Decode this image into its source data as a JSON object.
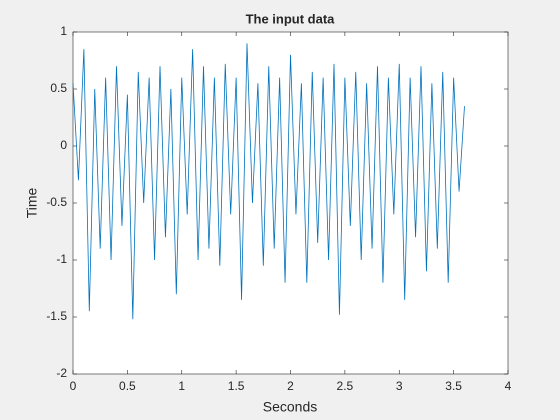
{
  "chart_data": {
    "type": "line",
    "title": "The input data",
    "xlabel": "Seconds",
    "ylabel": "Time",
    "x": [
      0,
      0.05,
      0.1,
      0.15,
      0.2,
      0.25,
      0.3,
      0.35,
      0.4,
      0.45,
      0.5,
      0.55,
      0.6,
      0.65,
      0.7,
      0.75,
      0.8,
      0.85,
      0.9,
      0.95,
      1,
      1.05,
      1.1,
      1.15,
      1.2,
      1.25,
      1.3,
      1.35,
      1.4,
      1.45,
      1.5,
      1.55,
      1.6,
      1.65,
      1.7,
      1.75,
      1.8,
      1.85,
      1.9,
      1.95,
      2,
      2.05,
      2.1,
      2.15,
      2.2,
      2.25,
      2.3,
      2.35,
      2.4,
      2.45,
      2.5,
      2.55,
      2.6,
      2.65,
      2.7,
      2.75,
      2.8,
      2.85,
      2.9,
      2.95,
      3,
      3.05,
      3.1,
      3.15,
      3.2,
      3.25,
      3.3,
      3.35,
      3.4,
      3.45,
      3.5,
      3.55,
      3.6
    ],
    "series": [
      {
        "color": "#0072bd",
        "values": [
          0.55,
          -0.3,
          0.85,
          -1.45,
          0.5,
          -0.9,
          0.6,
          -1.0,
          0.7,
          -0.7,
          0.45,
          -1.52,
          0.65,
          -0.5,
          0.6,
          -1.0,
          0.7,
          -0.8,
          0.5,
          -1.3,
          0.6,
          -0.6,
          0.85,
          -1.0,
          0.7,
          -0.9,
          0.6,
          -1.05,
          0.72,
          -0.6,
          0.6,
          -1.35,
          0.9,
          -0.5,
          0.55,
          -1.05,
          0.7,
          -0.9,
          0.6,
          -1.2,
          0.8,
          -0.6,
          0.55,
          -1.2,
          0.65,
          -0.85,
          0.6,
          -1.0,
          0.72,
          -1.48,
          0.6,
          -0.7,
          0.65,
          -1.0,
          0.55,
          -0.9,
          0.7,
          -1.2,
          0.6,
          -0.6,
          0.72,
          -1.35,
          0.6,
          -0.8,
          0.7,
          -1.1,
          0.55,
          -0.9,
          0.65,
          -1.2,
          0.6,
          -0.4,
          0.35
        ]
      }
    ],
    "xlim": [
      0,
      4
    ],
    "xticks": [
      0,
      0.5,
      1,
      1.5,
      2,
      2.5,
      3,
      3.5,
      4
    ],
    "ylim": [
      -2,
      1
    ],
    "yticks": [
      -2,
      -1.5,
      -1,
      -0.5,
      0,
      0.5,
      1
    ]
  }
}
